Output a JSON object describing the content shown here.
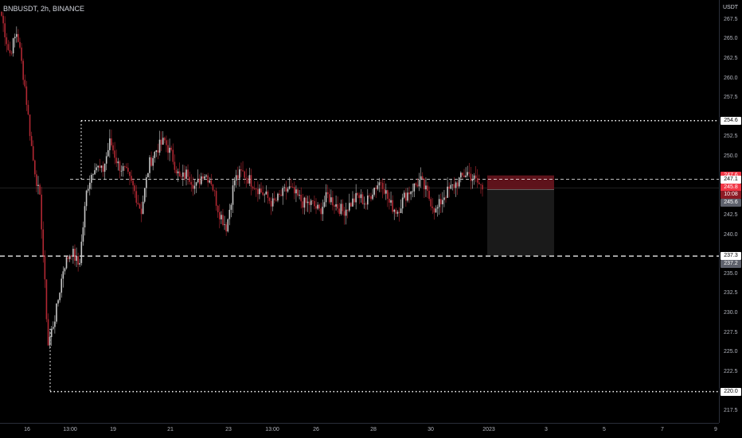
{
  "header": {
    "symbol": "BNBUSDT, 2h, BINANCE",
    "currency": "USDT"
  },
  "price_axis": {
    "min": 216,
    "max": 270,
    "ticks": [
      "267.5",
      "265.0",
      "262.5",
      "260.0",
      "257.5",
      "252.5",
      "250.0",
      "242.5",
      "240.0",
      "235.0",
      "232.5",
      "230.0",
      "227.5",
      "225.0",
      "222.5",
      "217.5"
    ],
    "tick_values": [
      267.5,
      265.0,
      262.5,
      260.0,
      257.5,
      252.5,
      250.0,
      242.5,
      240.0,
      235.0,
      232.5,
      230.0,
      227.5,
      225.0,
      222.5,
      217.5
    ],
    "tags": [
      {
        "text": "254.6",
        "value": 254.6,
        "style": "white"
      },
      {
        "text": "247.6",
        "value": 247.6,
        "style": "red"
      },
      {
        "text": "247.1",
        "value": 247.1,
        "style": "white"
      },
      {
        "text": "245.8",
        "value": 246.0,
        "style": "red"
      },
      {
        "text": "10:08",
        "value": 245.1,
        "style": "darkred"
      },
      {
        "text": "245.6",
        "value": 244.1,
        "style": "gray"
      },
      {
        "text": "237.3",
        "value": 237.3,
        "style": "white"
      },
      {
        "text": "237.2",
        "value": 236.3,
        "style": "gray"
      },
      {
        "text": "220.0",
        "value": 220.0,
        "style": "white"
      }
    ]
  },
  "time_axis": {
    "labels": [
      "16",
      "13:00",
      "19",
      "21",
      "23",
      "13:00",
      "26",
      "28",
      "30",
      "2023",
      "3",
      "5",
      "7",
      "9"
    ]
  },
  "levels": [
    {
      "value": 254.6,
      "style": "dotted"
    },
    {
      "value": 247.1,
      "style": "dashed"
    },
    {
      "value": 237.3,
      "style": "dashed-bold"
    },
    {
      "value": 220.0,
      "style": "dotted"
    }
  ],
  "colors": {
    "background": "#000000",
    "up": "#c7c7c7",
    "down": "#b22833",
    "grid": "#2a2e39",
    "level": "#ffffff",
    "stop_zone": "#6e1620",
    "target_zone": "#1a1a1a"
  },
  "chart_data": {
    "type": "candlestick",
    "symbol": "BNBUSDT",
    "interval": "2h",
    "exchange": "BINANCE",
    "y_range": [
      216,
      270
    ],
    "waypoints": [
      268,
      263,
      266,
      259,
      250,
      244,
      226,
      230,
      236,
      238,
      236,
      246,
      249,
      248,
      252,
      249,
      248,
      246,
      243,
      249,
      251,
      252,
      250,
      247,
      248,
      246,
      248,
      247,
      243,
      241,
      247,
      248,
      247,
      246,
      245,
      244,
      245,
      246,
      245,
      244,
      244,
      243,
      245,
      244,
      243,
      244,
      245,
      244,
      246,
      247,
      244,
      243,
      245,
      246,
      247,
      245,
      243,
      245,
      246,
      247,
      248,
      247,
      246
    ],
    "candle_count": 290,
    "current_price": 245.8,
    "position": {
      "entry": 247.1,
      "stop": 247.6,
      "target": 237.3
    }
  }
}
